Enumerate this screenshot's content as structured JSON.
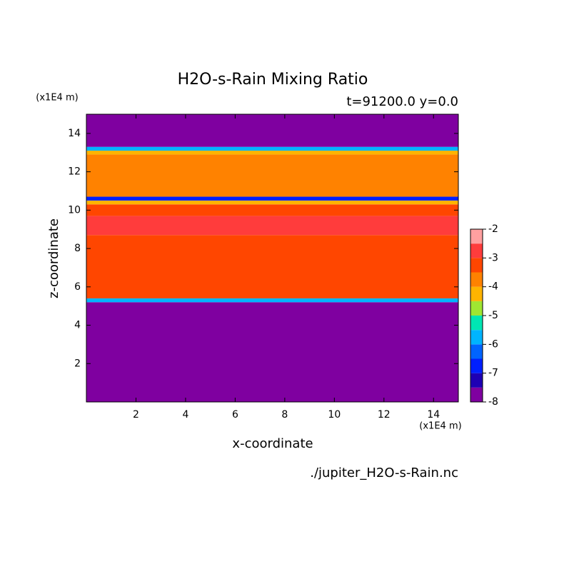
{
  "chart_data": {
    "type": "contour",
    "title": "H2O-s-Rain Mixing Ratio",
    "subtitle": "t=91200.0 y=0.0",
    "x_label": "x-coordinate",
    "y_label": "z-coordinate",
    "x_unit": "(x1E4 m)",
    "y_unit": "(x1E4 m)",
    "source": "./jupiter_H2O-s-Rain.nc",
    "xlim": [
      0,
      15
    ],
    "ylim": [
      0,
      15
    ],
    "xticks": [
      2,
      4,
      6,
      8,
      10,
      12,
      14
    ],
    "yticks": [
      2,
      4,
      6,
      8,
      10,
      12,
      14
    ],
    "profile": {
      "z_edges": [
        0,
        5.2,
        5.4,
        8.7,
        9.7,
        10.3,
        10.5,
        10.7,
        12.9,
        13.1,
        13.3,
        15
      ],
      "values": [
        -8,
        -6,
        -3.2,
        -2.8,
        -3.2,
        -4.2,
        -7,
        -3.7,
        -4.2,
        -6,
        -8
      ]
    },
    "colorbar": {
      "levels": [
        -8,
        -7.5,
        -7,
        -6.5,
        -6,
        -5.5,
        -5,
        -4.5,
        -4,
        -3.5,
        -3,
        -2.5,
        -2
      ],
      "colors": [
        "#7f00a0",
        "#1e00b4",
        "#0020ff",
        "#0064ff",
        "#00b4ff",
        "#00e6b4",
        "#a0e632",
        "#ffb400",
        "#ff8200",
        "#ff4600",
        "#ff3c3c",
        "#ffa0a0"
      ],
      "ticks": [
        -8,
        -7,
        -6,
        -5,
        -4,
        -3,
        -2
      ]
    }
  }
}
